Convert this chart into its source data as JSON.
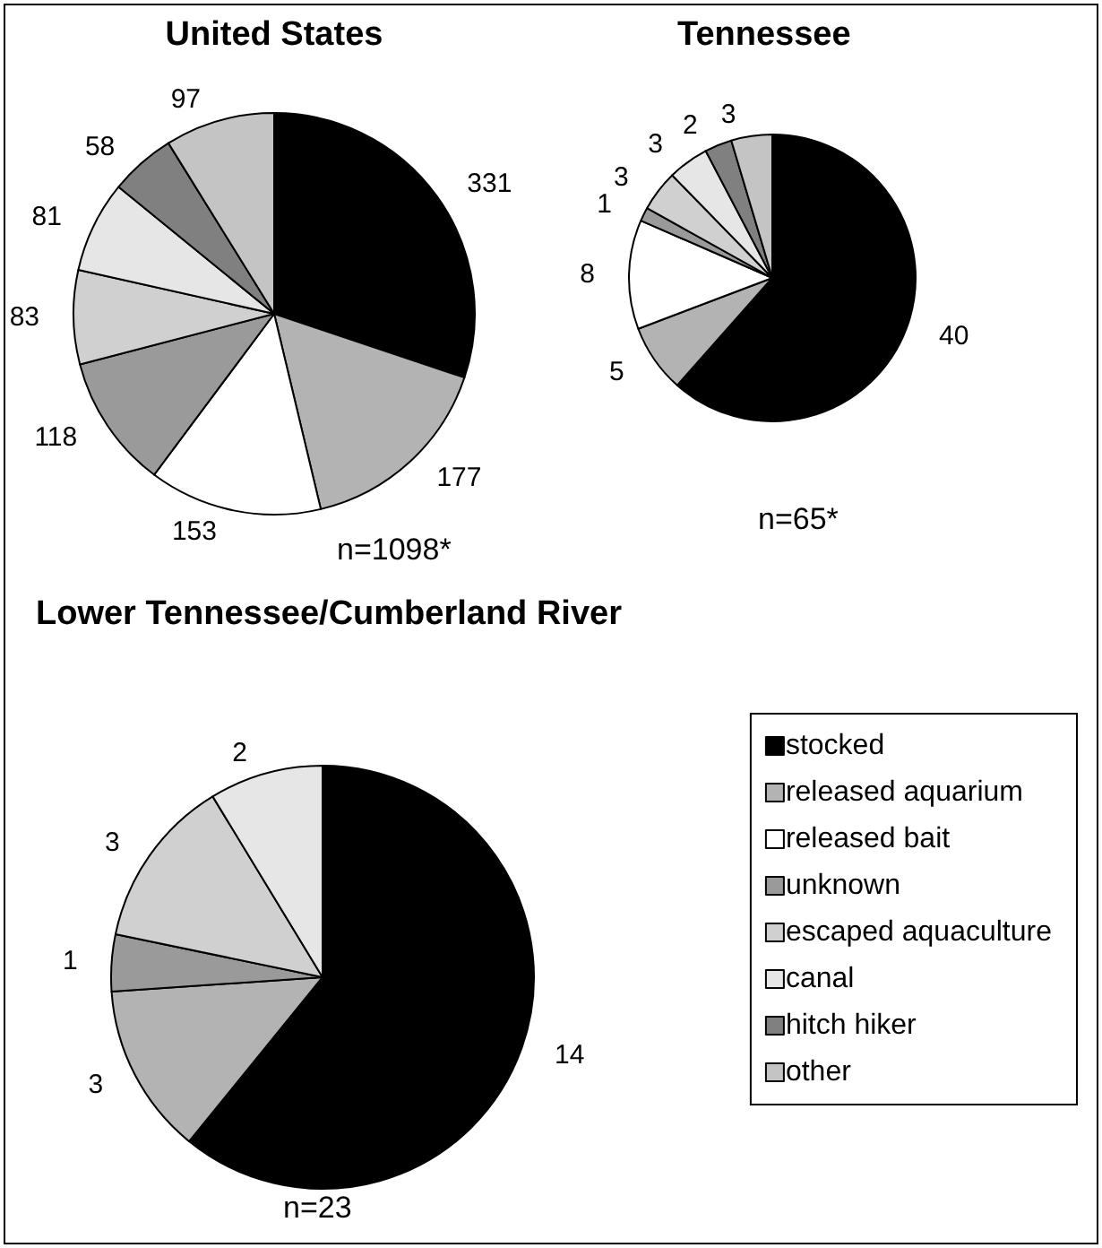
{
  "chart_data": [
    {
      "type": "pie",
      "title": "United States",
      "categories": [
        null,
        null,
        null,
        null,
        null,
        null,
        null,
        null
      ],
      "values": [
        331,
        177,
        153,
        118,
        83,
        81,
        58,
        97
      ],
      "colors": [
        "#000000",
        "#b3b3b3",
        "#ffffff",
        "#9a9a9a",
        "#d0d0d0",
        "#e6e6e6",
        "#808080",
        "#c4c4c4"
      ],
      "data_labels": true,
      "annotations": [
        "n=1098*"
      ],
      "legend": false
    },
    {
      "type": "pie",
      "title": "Tennessee",
      "categories": [
        null,
        null,
        null,
        null,
        null,
        null,
        null,
        null
      ],
      "values": [
        40,
        5,
        8,
        1,
        3,
        3,
        2,
        3
      ],
      "colors": [
        "#000000",
        "#b3b3b3",
        "#ffffff",
        "#9a9a9a",
        "#d0d0d0",
        "#e6e6e6",
        "#808080",
        "#c4c4c4"
      ],
      "data_labels": true,
      "annotations": [
        "n=65*"
      ],
      "legend": false
    },
    {
      "type": "pie",
      "title": "Lower Tennessee/Cumberland River",
      "categories": [
        "stocked",
        "released aquarium",
        "released bait",
        "unknown",
        "escaped aquaculture",
        "canal",
        "hitch hiker",
        "other"
      ],
      "values": [
        14,
        3,
        0,
        1,
        3,
        2,
        0,
        0
      ],
      "value_labels": [
        "14",
        "3",
        null,
        "1",
        "3",
        "2",
        null,
        null
      ],
      "colors": [
        "#000000",
        "#b3b3b3",
        "#ffffff",
        "#9a9a9a",
        "#d0d0d0",
        "#e6e6e6",
        "#808080",
        "#c4c4c4"
      ],
      "annotations": [
        "n=23"
      ],
      "legend": "right"
    }
  ]
}
